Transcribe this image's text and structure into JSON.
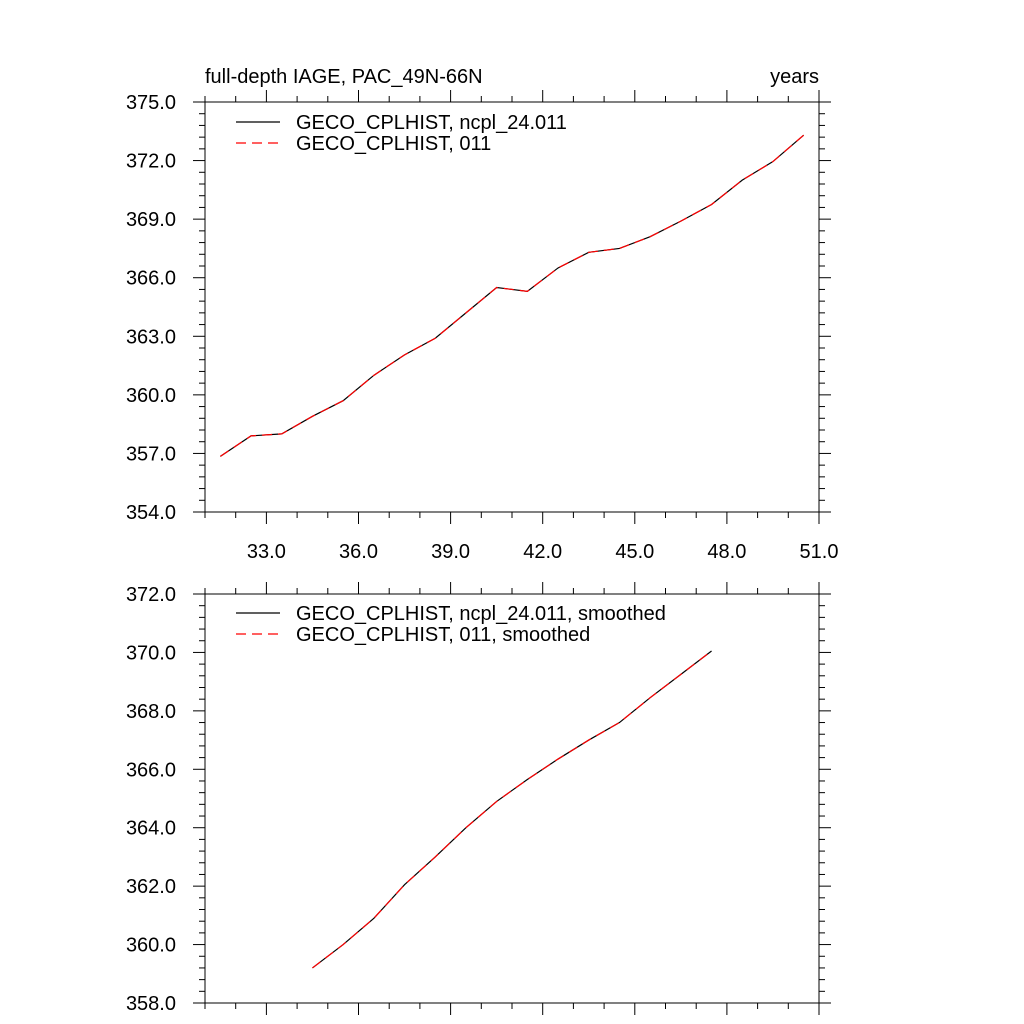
{
  "chart_data": [
    {
      "type": "line",
      "title_left": "full-depth IAGE, PAC_49N-66N",
      "title_right": "years",
      "xlabel": "",
      "ylabel": "",
      "xlim": [
        31.0,
        51.0
      ],
      "ylim": [
        354.0,
        375.0
      ],
      "x_ticks": [
        33.0,
        36.0,
        39.0,
        42.0,
        45.0,
        48.0,
        51.0
      ],
      "x_tick_labels": [
        "33.0",
        "36.0",
        "39.0",
        "42.0",
        "45.0",
        "48.0",
        "51.0"
      ],
      "y_ticks": [
        354.0,
        357.0,
        360.0,
        363.0,
        366.0,
        369.0,
        372.0,
        375.0
      ],
      "y_tick_labels": [
        "354.0",
        "357.0",
        "360.0",
        "363.0",
        "366.0",
        "369.0",
        "372.0",
        "375.0"
      ],
      "legend_position": "top-left",
      "series": [
        {
          "name": "GECO_CPLHIST, ncpl_24.011",
          "color": "#000000",
          "dash": "solid",
          "x": [
            31.5,
            32.5,
            33.5,
            34.5,
            35.5,
            36.5,
            37.5,
            38.5,
            39.5,
            40.5,
            41.5,
            42.5,
            43.5,
            44.5,
            45.5,
            46.5,
            47.5,
            48.5,
            49.5,
            50.5
          ],
          "y": [
            356.85,
            357.9,
            358.0,
            358.9,
            359.7,
            361.0,
            362.05,
            362.9,
            364.2,
            365.5,
            365.3,
            366.5,
            367.3,
            367.5,
            368.1,
            368.9,
            369.75,
            371.0,
            371.95,
            373.3
          ]
        },
        {
          "name": "GECO_CPLHIST, 011",
          "color": "#ff0000",
          "dash": "dashed",
          "x": [
            31.5,
            32.5,
            33.5,
            34.5,
            35.5,
            36.5,
            37.5,
            38.5,
            39.5,
            40.5,
            41.5,
            42.5,
            43.5,
            44.5,
            45.5,
            46.5,
            47.5,
            48.5,
            49.5,
            50.5
          ],
          "y": [
            356.85,
            357.9,
            358.0,
            358.9,
            359.7,
            361.0,
            362.05,
            362.9,
            364.2,
            365.5,
            365.3,
            366.5,
            367.3,
            367.5,
            368.1,
            368.9,
            369.75,
            371.0,
            371.95,
            373.3
          ]
        }
      ]
    },
    {
      "type": "line",
      "title_left": "",
      "title_right": "",
      "xlabel": "",
      "ylabel": "",
      "xlim": [
        31.0,
        51.0
      ],
      "ylim": [
        358.0,
        372.0
      ],
      "x_ticks": [
        33.0,
        36.0,
        39.0,
        42.0,
        45.0,
        48.0,
        51.0
      ],
      "x_tick_labels": [],
      "y_ticks": [
        358.0,
        360.0,
        362.0,
        364.0,
        366.0,
        368.0,
        370.0,
        372.0
      ],
      "y_tick_labels": [
        "358.0",
        "360.0",
        "362.0",
        "364.0",
        "366.0",
        "368.0",
        "370.0",
        "372.0"
      ],
      "legend_position": "top-left",
      "series": [
        {
          "name": "GECO_CPLHIST, ncpl_24.011, smoothed",
          "color": "#000000",
          "dash": "solid",
          "x": [
            34.5,
            35.5,
            36.5,
            37.5,
            38.5,
            39.5,
            40.5,
            41.5,
            42.5,
            43.5,
            44.5,
            45.5,
            46.5,
            47.5
          ],
          "y": [
            359.2,
            360.0,
            360.9,
            362.05,
            363.0,
            364.0,
            364.9,
            365.65,
            366.35,
            367.0,
            367.6,
            368.45,
            369.25,
            370.05
          ]
        },
        {
          "name": "GECO_CPLHIST, 011, smoothed",
          "color": "#ff0000",
          "dash": "dashed",
          "x": [
            34.5,
            35.5,
            36.5,
            37.5,
            38.5,
            39.5,
            40.5,
            41.5,
            42.5,
            43.5,
            44.5,
            45.5,
            46.5,
            47.5
          ],
          "y": [
            359.2,
            360.0,
            360.9,
            362.05,
            363.0,
            364.0,
            364.9,
            365.65,
            366.35,
            367.0,
            367.6,
            368.45,
            369.25,
            370.05
          ]
        }
      ]
    }
  ]
}
